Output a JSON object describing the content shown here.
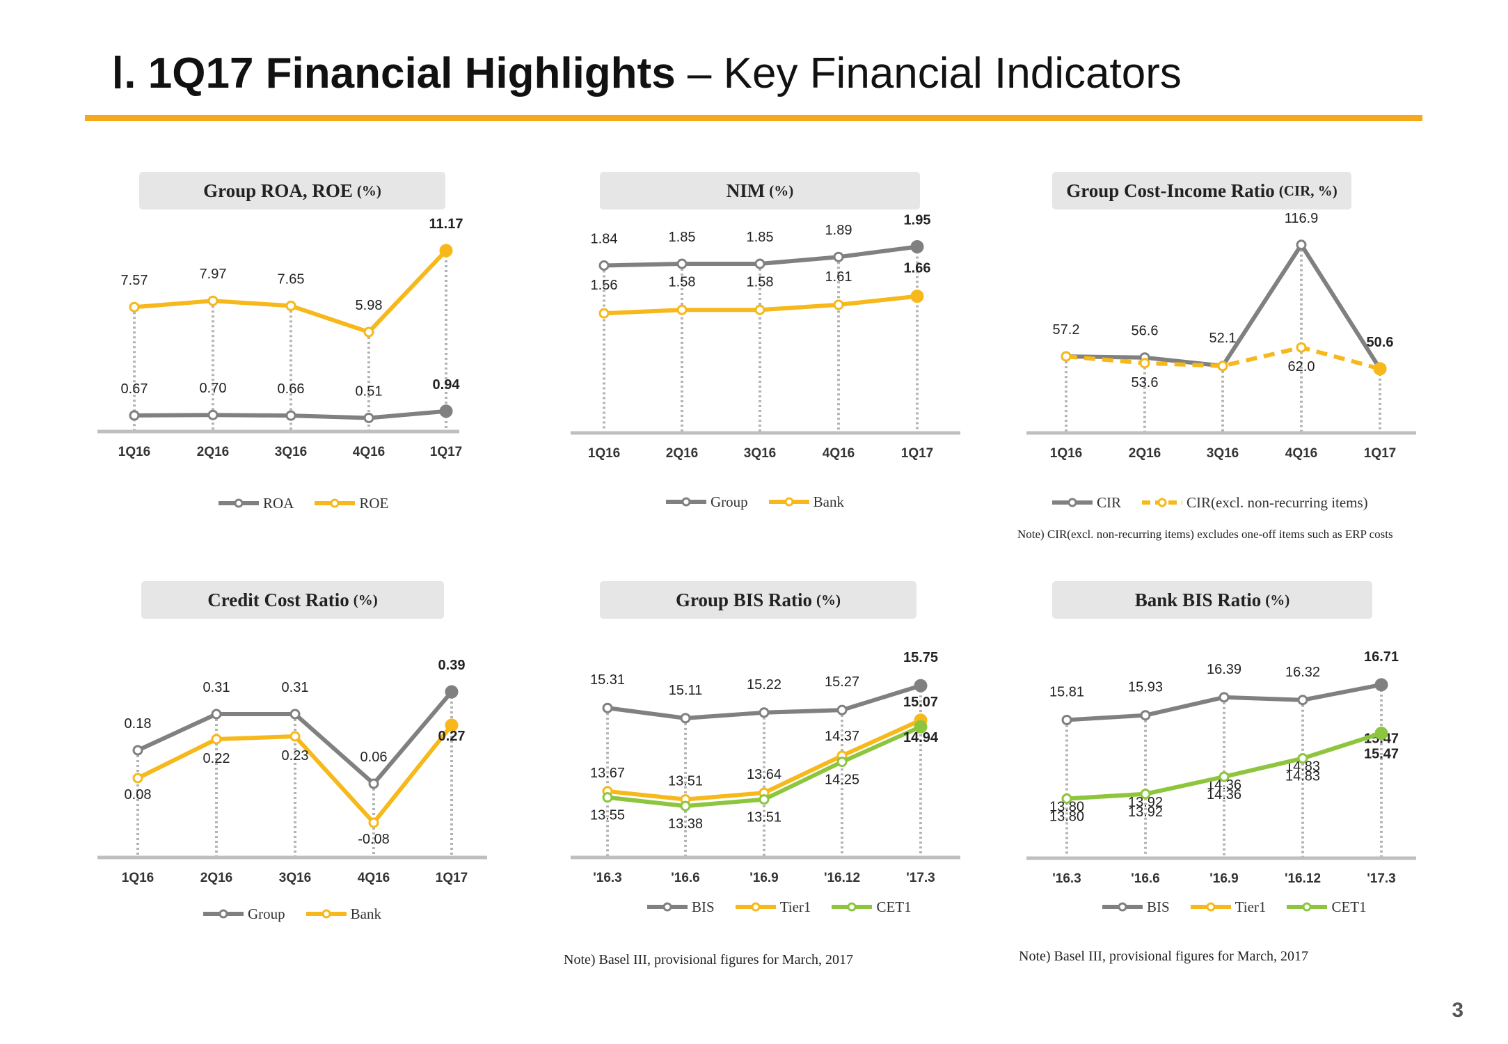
{
  "page": {
    "title_roman": "Ⅰ.",
    "title_bold": "1Q17 Financial Highlights",
    "title_rest": "– Key Financial Indicators",
    "page_number": "3"
  },
  "colors": {
    "gray": "#808080",
    "yellow": "#f6b81a",
    "green": "#8cc63f",
    "accent": "#f5a81c",
    "header_bg": "#e6e6e6",
    "axis": "#bfbfbf"
  },
  "notes": {
    "cir": "Note) CIR(excl. non-recurring  items) excludes one-off items such as ERP costs",
    "group_bis": "Note) Basel III, provisional figures for March, 2017",
    "bank_bis": "Note) Basel III, provisional figures for March, 2017"
  },
  "chart_data": [
    {
      "id": "roa_roe",
      "type": "line",
      "title": "Group ROA, ROE",
      "unit": "(%)",
      "categories": [
        "1Q16",
        "2Q16",
        "3Q16",
        "4Q16",
        "1Q17"
      ],
      "ylim": [
        0,
        12.5
      ],
      "series": [
        {
          "name": "ROA",
          "color": "#808080",
          "dashed": false,
          "values": [
            0.67,
            0.7,
            0.66,
            0.51,
            0.94
          ],
          "labels": [
            "0.67",
            "0.70",
            "0.66",
            "0.51",
            "0.94"
          ]
        },
        {
          "name": "ROE",
          "color": "#f6b81a",
          "dashed": false,
          "values": [
            7.57,
            7.97,
            7.65,
            5.98,
            11.17
          ],
          "labels": [
            "7.57",
            "7.97",
            "7.65",
            "5.98",
            "11.17"
          ]
        }
      ],
      "legend": "bottom"
    },
    {
      "id": "nim",
      "type": "line",
      "title": "NIM",
      "unit": "(%)",
      "categories": [
        "1Q16",
        "2Q16",
        "3Q16",
        "4Q16",
        "1Q17"
      ],
      "ylim": [
        0.9,
        2.05
      ],
      "series": [
        {
          "name": "Group",
          "color": "#808080",
          "dashed": false,
          "values": [
            1.84,
            1.85,
            1.85,
            1.89,
            1.95
          ],
          "labels": [
            "1.84",
            "1.85",
            "1.85",
            "1.89",
            "1.95"
          ]
        },
        {
          "name": "Bank",
          "color": "#f6b81a",
          "dashed": false,
          "values": [
            1.56,
            1.58,
            1.58,
            1.61,
            1.66
          ],
          "labels": [
            "1.56",
            "1.58",
            "1.58",
            "1.61",
            "1.66"
          ]
        }
      ],
      "legend": "bottom"
    },
    {
      "id": "cir",
      "type": "line",
      "title": "Group Cost-Income Ratio",
      "unit": "(CIR, %)",
      "categories": [
        "1Q16",
        "2Q16",
        "3Q16",
        "4Q16",
        "1Q17"
      ],
      "ylim": [
        20,
        125
      ],
      "series": [
        {
          "name": "CIR",
          "color": "#808080",
          "dashed": false,
          "values": [
            57.2,
            56.6,
            52.1,
            116.9,
            50.6
          ],
          "labels": [
            "57.2",
            "56.6",
            "52.1",
            "116.9",
            "50.6"
          ]
        },
        {
          "name": "CIR(excl. non-recurring items)",
          "color": "#f6b81a",
          "dashed": true,
          "values": [
            57.2,
            53.6,
            52.1,
            62.0,
            50.6
          ],
          "labels": [
            "",
            "53.6",
            "",
            "62.0",
            ""
          ]
        }
      ],
      "legend": "bottom"
    },
    {
      "id": "credit_cost",
      "type": "line",
      "title": "Credit Cost Ratio",
      "unit": "(%)",
      "categories": [
        "1Q16",
        "2Q16",
        "3Q16",
        "4Q16",
        "1Q17"
      ],
      "ylim": [
        -0.2,
        0.5
      ],
      "series": [
        {
          "name": "Group",
          "color": "#808080",
          "dashed": false,
          "values": [
            0.18,
            0.31,
            0.31,
            0.06,
            0.39
          ],
          "labels": [
            "0.18",
            "0.31",
            "0.31",
            "0.06",
            "0.39"
          ]
        },
        {
          "name": "Bank",
          "color": "#f6b81a",
          "dashed": false,
          "values": [
            0.08,
            0.22,
            0.23,
            -0.08,
            0.27
          ],
          "labels": [
            "0.08",
            "0.22",
            "0.23",
            "-0.08",
            "0.27"
          ]
        }
      ],
      "legend": "bottom"
    },
    {
      "id": "group_bis",
      "type": "line",
      "title": "Group BIS Ratio",
      "unit": "(%)",
      "categories": [
        "'16.3",
        "'16.6",
        "'16.9",
        "'16.12",
        "'17.3"
      ],
      "ylim": [
        12.6,
        16.3
      ],
      "series": [
        {
          "name": "BIS",
          "color": "#808080",
          "dashed": false,
          "values": [
            15.31,
            15.11,
            15.22,
            15.27,
            15.75
          ],
          "labels": [
            "15.31",
            "15.11",
            "15.22",
            "15.27",
            "15.75"
          ]
        },
        {
          "name": "Tier1",
          "color": "#f6b81a",
          "dashed": false,
          "values": [
            13.67,
            13.51,
            13.64,
            14.37,
            15.07
          ],
          "labels": [
            "13.67",
            "13.51",
            "13.64",
            "14.37",
            "15.07"
          ]
        },
        {
          "name": "CET1",
          "color": "#8cc63f",
          "dashed": false,
          "values": [
            13.55,
            13.38,
            13.51,
            14.25,
            14.94
          ],
          "labels": [
            "13.55",
            "13.38",
            "13.51",
            "14.25",
            "14.94"
          ]
        }
      ],
      "legend": "bottom"
    },
    {
      "id": "bank_bis",
      "type": "line",
      "title": "Bank BIS Ratio",
      "unit": "(%)",
      "categories": [
        "'16.3",
        "'16.6",
        "'16.9",
        "'16.12",
        "'17.3"
      ],
      "ylim": [
        12.6,
        17.4
      ],
      "series": [
        {
          "name": "BIS",
          "color": "#808080",
          "dashed": false,
          "values": [
            15.81,
            15.93,
            16.39,
            16.32,
            16.71
          ],
          "labels": [
            "15.81",
            "15.93",
            "16.39",
            "16.32",
            "16.71"
          ]
        },
        {
          "name": "Tier1",
          "color": "#f6b81a",
          "dashed": false,
          "values": [
            13.8,
            13.92,
            14.36,
            14.83,
            15.47
          ],
          "labels": [
            "13.80",
            "13.92",
            "14.36",
            "14.83",
            "15.47"
          ]
        },
        {
          "name": "CET1",
          "color": "#8cc63f",
          "dashed": false,
          "values": [
            13.8,
            13.92,
            14.36,
            14.83,
            15.47
          ],
          "labels": [
            "13.80",
            "13.92",
            "14.36",
            "14.83",
            "15.47"
          ]
        }
      ],
      "legend": "bottom"
    }
  ]
}
